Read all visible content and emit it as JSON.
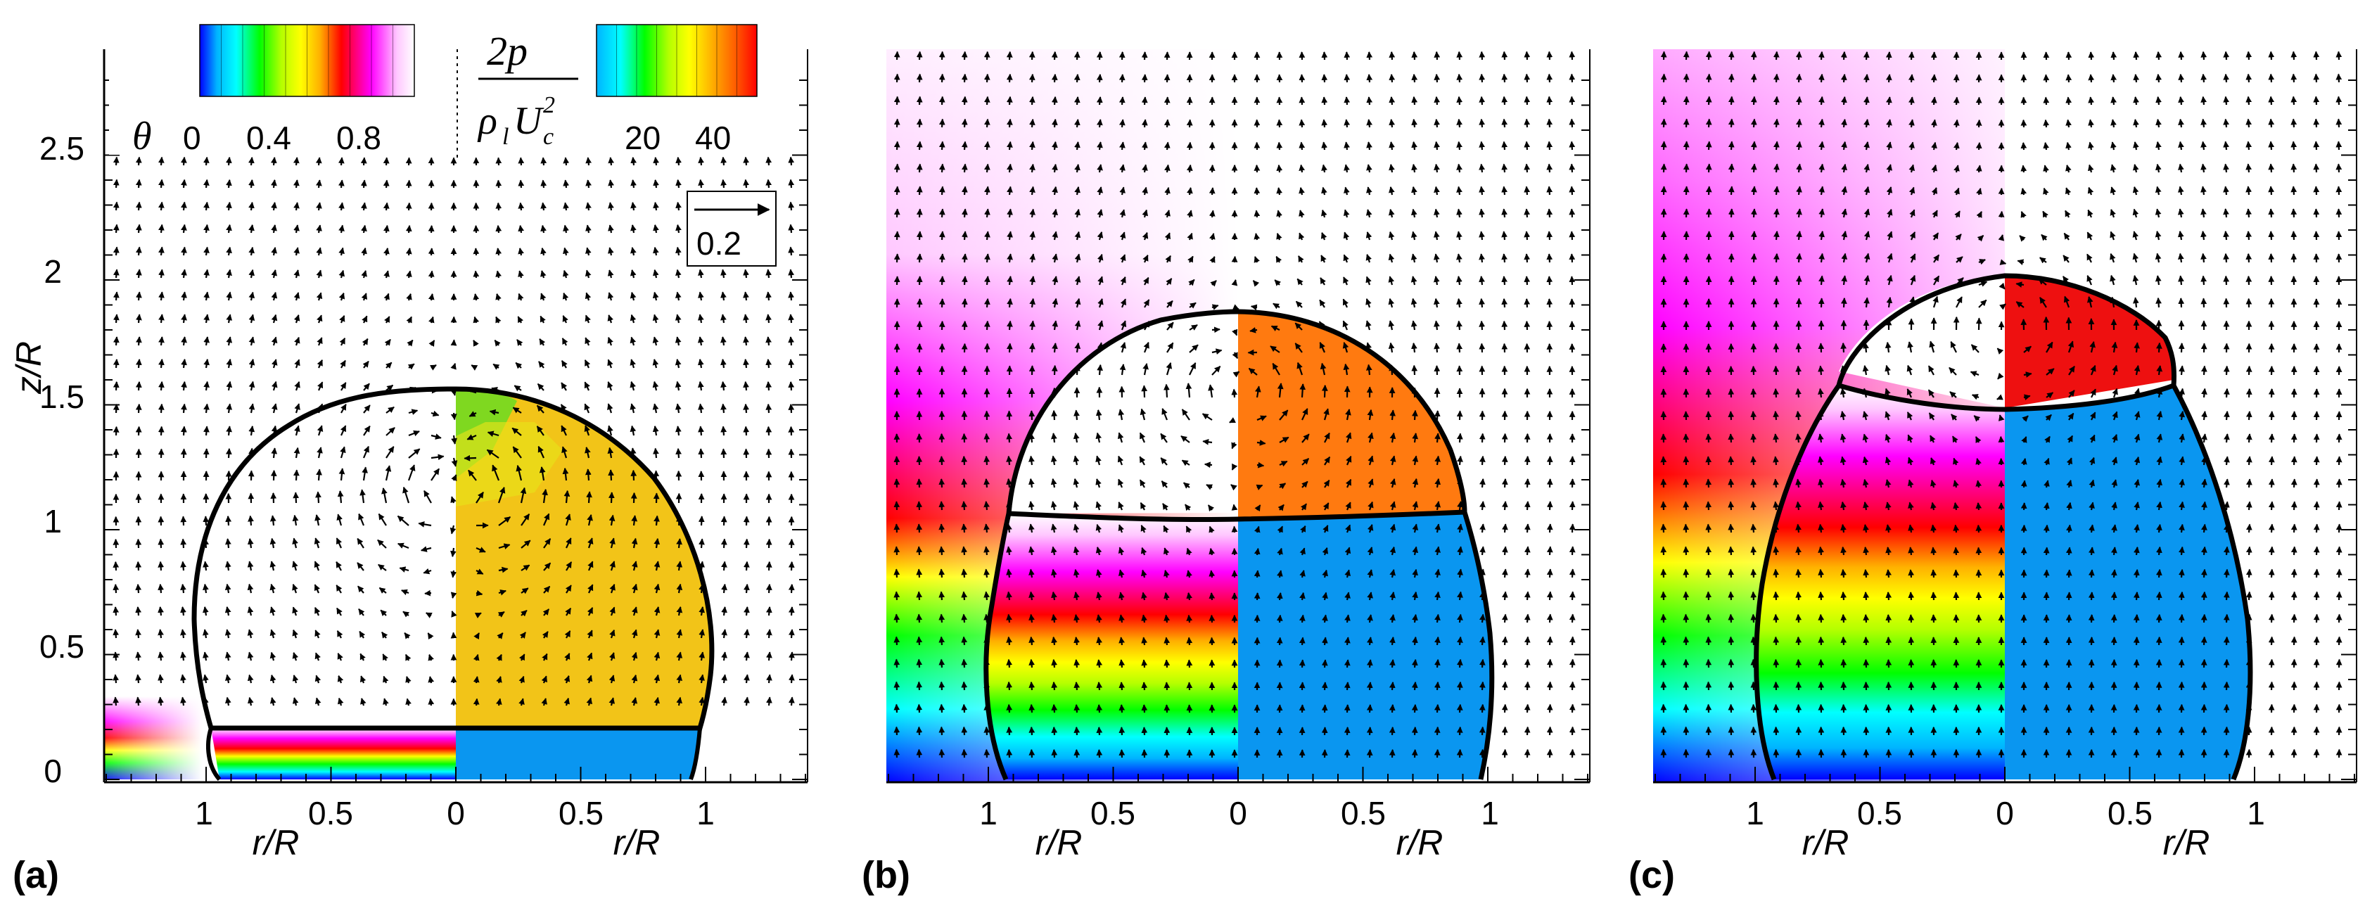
{
  "figure": {
    "panel_labels": [
      "(a)",
      "(b)",
      "(c)"
    ],
    "x_tick_labels": [
      "1",
      "0.5",
      "0",
      "0.5",
      "1"
    ],
    "x_axis_label": "r/R",
    "y_axis_label": "z/R",
    "y_tick_labels": [
      "0",
      "0.5",
      "1",
      "1.5",
      "2",
      "2.5"
    ]
  },
  "legend": {
    "theta_symbol": "θ",
    "theta_ticks": [
      "0",
      "0.4",
      "0.8"
    ],
    "pressure_numerator": "2p",
    "pressure_denominator_rho": "ρ",
    "pressure_denominator_sub": "l",
    "pressure_denominator_U": "U",
    "pressure_denominator_usub": "c",
    "pressure_denominator_exp": "2",
    "pressure_ticks": [
      "20",
      "40"
    ],
    "reference_vector_label": "0.2"
  },
  "colors": {
    "theta_colormap": [
      "#0000ff",
      "#00b4ff",
      "#00ffff",
      "#00ff00",
      "#b4ff00",
      "#ffff00",
      "#ffb000",
      "#ff0000",
      "#ff00ff",
      "#ffc8ff",
      "#ffffff"
    ],
    "pressure_colormap": [
      "#00b4ff",
      "#00ffff",
      "#00ff00",
      "#b4ff00",
      "#ffff00",
      "#ffb000",
      "#ff6000",
      "#ff0000"
    ],
    "liquid_pressure_blue": "#0a96f0",
    "panel_a_pressure": "#f2c418",
    "panel_b_pressure": "#ff7a10",
    "panel_c_pressure": "#ee1010"
  },
  "chart_data": [
    {
      "panel": "(a)",
      "type": "contour+vector",
      "xlabel": "r/R",
      "ylabel": "z/R",
      "xlim": [
        -1.45,
        1.45
      ],
      "ylim": [
        -0.02,
        2.9
      ],
      "interface_height": 0.22,
      "vapor_top": 1.57,
      "vapor_max_half_width": 1.05,
      "left_half": "temperature theta",
      "right_half": "pressure 2p/(rho_l Uc^2)"
    },
    {
      "panel": "(b)",
      "type": "contour+vector",
      "xlabel": "r/R",
      "xlim": [
        -1.45,
        1.45
      ],
      "ylim": [
        -0.02,
        2.9
      ],
      "interface_height": 1.02,
      "vapor_top": 1.85,
      "vapor_max_half_width": 1.07
    },
    {
      "panel": "(c)",
      "type": "contour+vector",
      "xlabel": "r/R",
      "xlim": [
        -1.45,
        1.45
      ],
      "ylim": [
        -0.02,
        2.9
      ],
      "interface_height": 1.51,
      "vapor_top": 2.0,
      "vapor_max_half_width": 1.07
    }
  ]
}
